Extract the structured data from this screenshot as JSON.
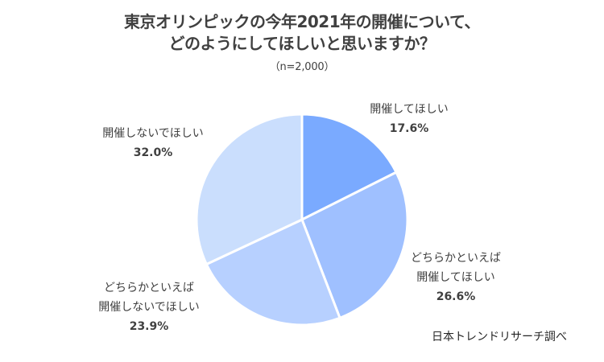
{
  "chart_data": {
    "type": "pie",
    "title_lines": [
      "東京オリンピックの今年2021年の開催について、",
      "どのようにしてほしいと思いますか？"
    ],
    "subtitle": "（n=2,000）",
    "slices": [
      {
        "label_lines": [
          "開催してほしい"
        ],
        "value": 17.6,
        "display": "17.6%",
        "color": "#7aaaff"
      },
      {
        "label_lines": [
          "どちらかといえば",
          "開催してほしい"
        ],
        "value": 26.6,
        "display": "26.6%",
        "color": "#9fc0ff"
      },
      {
        "label_lines": [
          "どちらかといえば",
          "開催しないでほしい"
        ],
        "value": 23.9,
        "display": "23.9%",
        "color": "#b7d0ff"
      },
      {
        "label_lines": [
          "開催しないでほしい"
        ],
        "value": 32.0,
        "display": "32.0%",
        "color": "#cadefd"
      }
    ],
    "start": "12 o'clock",
    "direction": "clockwise"
  },
  "source": "日本トレンドリサーチ調べ"
}
